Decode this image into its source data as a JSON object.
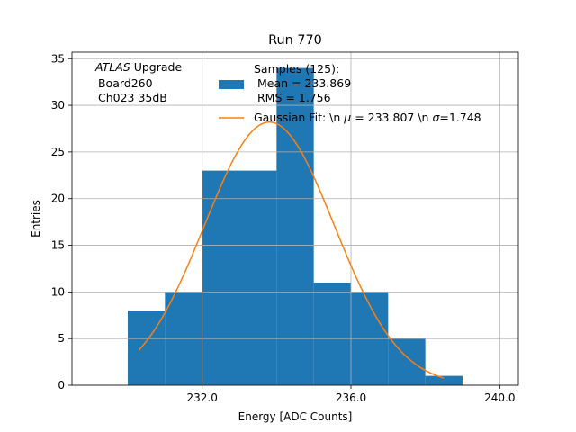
{
  "chart_data": {
    "type": "bar",
    "title": "Run 770",
    "xlabel": "Energy [ADC Counts]",
    "ylabel": "Entries",
    "xlim": [
      228.5,
      240.5
    ],
    "ylim": [
      0,
      35.7
    ],
    "grid": true,
    "xticks": [
      232,
      236,
      240
    ],
    "xtick_labels": [
      "232.0",
      "236.0",
      "240.0"
    ],
    "yticks": [
      0,
      5,
      10,
      15,
      20,
      25,
      30,
      35
    ],
    "ytick_labels": [
      "0",
      "5",
      "10",
      "15",
      "20",
      "25",
      "30",
      "35"
    ],
    "bins": [
      {
        "left": 230,
        "right": 231,
        "count": 8
      },
      {
        "left": 231,
        "right": 232,
        "count": 10
      },
      {
        "left": 232,
        "right": 233,
        "count": 23
      },
      {
        "left": 233,
        "right": 234,
        "count": 23
      },
      {
        "left": 234,
        "right": 235,
        "count": 34
      },
      {
        "left": 235,
        "right": 236,
        "count": 11
      },
      {
        "left": 236,
        "right": 237,
        "count": 10
      },
      {
        "left": 237,
        "right": 238,
        "count": 5
      },
      {
        "left": 238,
        "right": 239,
        "count": 1
      }
    ],
    "fit": {
      "type": "gaussian",
      "amplitude": 28.2,
      "mu": 233.807,
      "sigma": 1.748,
      "x_range": [
        230.3,
        238.5
      ]
    },
    "annotation": {
      "line1_italic": "ATLAS",
      "line1_rest": " Upgrade",
      "line2": " Board260",
      "line3": " Ch023 35dB"
    },
    "legend": {
      "position": "top-right",
      "hist_lines": [
        "Samples (125):",
        " Mean = 233.869",
        " RMS = 1.756"
      ],
      "fit_prefix": "Gaussian Fit: \\n ",
      "fit_mu_symbol": "μ",
      "fit_mid": " = 233.807 \\n ",
      "fit_sigma_symbol": "σ",
      "fit_suffix": "=1.748"
    },
    "colors": {
      "histogram": "#1f77b4",
      "fit": "#ff7f0e",
      "grid": "#b0b0b0"
    }
  }
}
